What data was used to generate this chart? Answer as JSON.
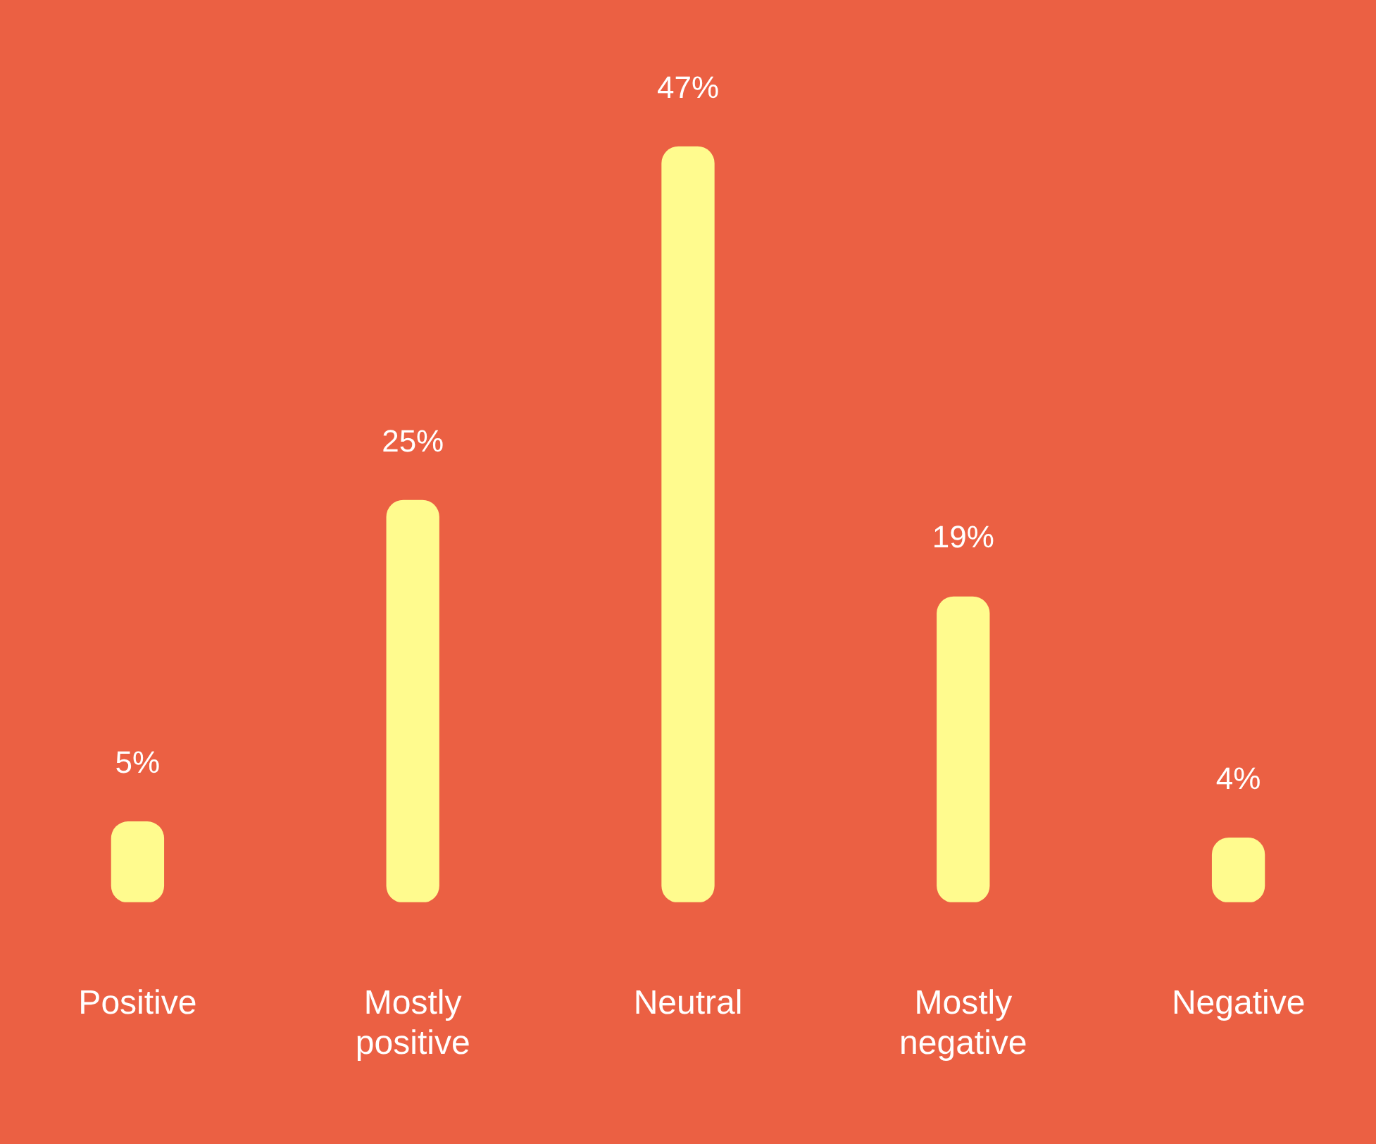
{
  "chart_data": {
    "type": "bar",
    "categories": [
      "Positive",
      "Mostly positive",
      "Neutral",
      "Mostly negative",
      "Negative"
    ],
    "values": [
      5,
      25,
      47,
      19,
      4
    ],
    "value_labels": [
      "5%",
      "25%",
      "47%",
      "19%",
      "4%"
    ],
    "color": "#fffb8e"
  }
}
